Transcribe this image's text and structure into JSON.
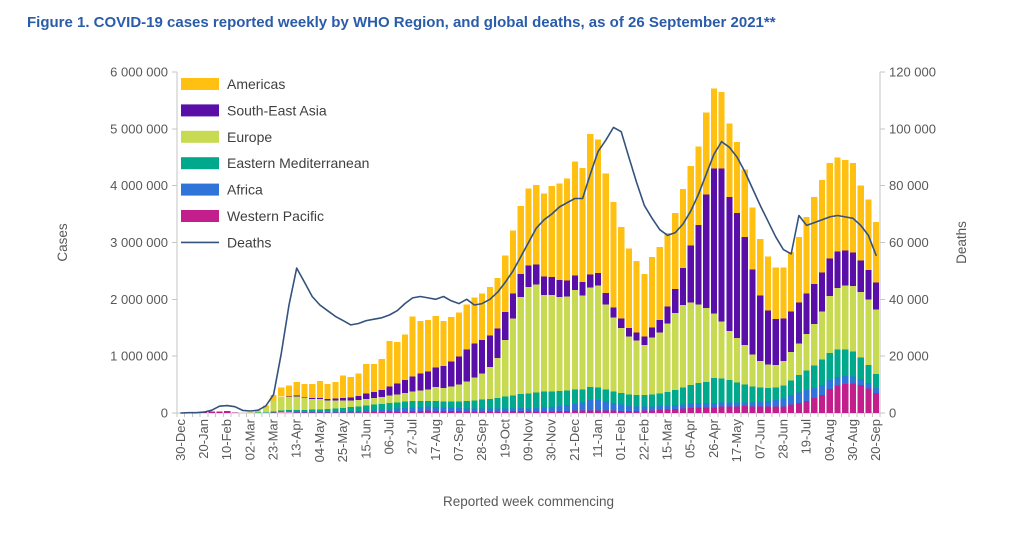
{
  "title": "Figure 1. COVID-19 cases reported weekly by WHO Region, and global deaths, as of 26 September 2021**",
  "chart_data": {
    "type": "bar",
    "subtype": "stacked-bars-with-line",
    "title": "Figure 1. COVID-19 cases reported weekly by WHO Region, and global deaths, as of 26 September 2021**",
    "xlabel": "Reported week commencing",
    "grid": false,
    "legend_position": "top-left-inside",
    "y_left": {
      "label": "Cases",
      "min": 0,
      "max": 6000000,
      "tick_labels": [
        "0",
        "1 000 000",
        "2 000 000",
        "3 000 000",
        "4 000 000",
        "5 000 000",
        "6 000 000"
      ]
    },
    "y_right": {
      "label": "Deaths",
      "min": 0,
      "max": 120000,
      "tick_labels": [
        "0",
        "20 000",
        "40 000",
        "60 000",
        "80 000",
        "100 000",
        "120 000"
      ]
    },
    "x_tick_every": 3,
    "weeks": [
      "30-Dec",
      "06-Jan",
      "13-Jan",
      "20-Jan",
      "27-Jan",
      "03-Feb",
      "10-Feb",
      "17-Feb",
      "24-Feb",
      "02-Mar",
      "09-Mar",
      "16-Mar",
      "23-Mar",
      "30-Mar",
      "06-Apr",
      "13-Apr",
      "20-Apr",
      "27-Apr",
      "04-May",
      "11-May",
      "18-May",
      "25-May",
      "01-Jun",
      "08-Jun",
      "15-Jun",
      "22-Jun",
      "29-Jun",
      "06-Jul",
      "13-Jul",
      "20-Jul",
      "27-Jul",
      "03-Aug",
      "10-Aug",
      "17-Aug",
      "24-Aug",
      "31-Aug",
      "07-Sep",
      "14-Sep",
      "21-Sep",
      "28-Sep",
      "05-Oct",
      "12-Oct",
      "19-Oct",
      "26-Oct",
      "02-Nov",
      "09-Nov",
      "16-Nov",
      "23-Nov",
      "30-Nov",
      "07-Dec",
      "14-Dec",
      "21-Dec",
      "28-Dec",
      "04-Jan",
      "11-Jan",
      "18-Jan",
      "25-Jan",
      "01-Feb",
      "08-Feb",
      "15-Feb",
      "22-Feb",
      "01-Mar",
      "08-Mar",
      "15-Mar",
      "22-Mar",
      "29-Mar",
      "05-Apr",
      "12-Apr",
      "19-Apr",
      "26-Apr",
      "03-May",
      "10-May",
      "17-May",
      "24-May",
      "31-May",
      "07-Jun",
      "14-Jun",
      "21-Jun",
      "28-Jun",
      "05-Jul",
      "12-Jul",
      "19-Jul",
      "26-Jul",
      "02-Aug",
      "09-Aug",
      "16-Aug",
      "23-Aug",
      "30-Aug",
      "06-Sep",
      "13-Sep",
      "20-Sep"
    ],
    "values_unit": "thousands (multiply by 1000)",
    "series": [
      {
        "name": "Western Pacific",
        "color": "#C21F8D",
        "values": [
          0,
          0,
          1,
          15,
          30,
          28,
          32,
          8,
          4,
          3,
          3,
          5,
          8,
          10,
          9,
          8,
          7,
          7,
          7,
          8,
          9,
          10,
          11,
          12,
          14,
          16,
          18,
          22,
          26,
          30,
          34,
          38,
          40,
          38,
          36,
          34,
          32,
          30,
          29,
          28,
          28,
          29,
          30,
          32,
          34,
          25,
          26,
          28,
          30,
          34,
          38,
          40,
          42,
          45,
          45,
          42,
          40,
          38,
          37,
          38,
          40,
          44,
          50,
          58,
          68,
          80,
          92,
          100,
          100,
          100,
          110,
          115,
          118,
          120,
          118,
          115,
          112,
          112,
          118,
          150,
          180,
          215,
          260,
          320,
          420,
          480,
          510,
          520,
          490,
          430,
          350
        ]
      },
      {
        "name": "Africa",
        "color": "#2E74D9",
        "values": [
          0,
          0,
          0,
          0,
          0,
          0,
          0,
          0,
          0,
          0,
          1,
          1,
          2,
          4,
          5,
          6,
          7,
          8,
          10,
          12,
          14,
          17,
          20,
          24,
          28,
          32,
          36,
          42,
          50,
          58,
          65,
          70,
          72,
          70,
          65,
          60,
          55,
          52,
          50,
          48,
          47,
          47,
          48,
          50,
          53,
          57,
          62,
          68,
          75,
          90,
          105,
          120,
          140,
          185,
          180,
          160,
          135,
          110,
          90,
          80,
          75,
          72,
          70,
          68,
          70,
          72,
          75,
          78,
          80,
          80,
          76,
          72,
          70,
          68,
          70,
          80,
          95,
          115,
          140,
          165,
          185,
          190,
          180,
          170,
          160,
          150,
          140,
          125,
          110,
          95,
          88
        ]
      },
      {
        "name": "Eastern Mediterranean",
        "color": "#00A98C",
        "values": [
          0,
          0,
          0,
          0,
          0,
          0,
          0,
          1,
          1,
          3,
          6,
          12,
          20,
          28,
          35,
          40,
          42,
          45,
          48,
          52,
          58,
          65,
          72,
          80,
          90,
          100,
          105,
          110,
          112,
          112,
          110,
          105,
          102,
          100,
          102,
          108,
          118,
          130,
          145,
          160,
          175,
          190,
          210,
          230,
          250,
          265,
          275,
          280,
          275,
          265,
          255,
          250,
          235,
          230,
          220,
          210,
          205,
          200,
          195,
          195,
          200,
          210,
          225,
          245,
          270,
          300,
          330,
          350,
          365,
          440,
          420,
          390,
          350,
          310,
          280,
          250,
          230,
          220,
          225,
          260,
          300,
          345,
          400,
          450,
          480,
          490,
          470,
          440,
          380,
          320,
          250
        ]
      },
      {
        "name": "Europe",
        "color": "#C7DA52",
        "values": [
          0,
          0,
          0,
          0,
          1,
          1,
          1,
          1,
          2,
          12,
          35,
          90,
          190,
          240,
          235,
          240,
          205,
          190,
          180,
          150,
          140,
          130,
          120,
          115,
          115,
          115,
          120,
          130,
          140,
          155,
          170,
          185,
          200,
          250,
          235,
          265,
          300,
          345,
          400,
          460,
          560,
          700,
          1000,
          1350,
          1700,
          1870,
          1900,
          1700,
          1700,
          1650,
          1650,
          1750,
          1650,
          1750,
          1800,
          1500,
          1300,
          1150,
          1020,
          960,
          880,
          1000,
          1070,
          1200,
          1350,
          1450,
          1450,
          1380,
          1300,
          1130,
          1000,
          870,
          780,
          700,
          560,
          470,
          420,
          400,
          430,
          500,
          560,
          640,
          730,
          850,
          1000,
          1080,
          1120,
          1150,
          1150,
          1150,
          1130
        ]
      },
      {
        "name": "South-East Asia",
        "color": "#5A0EA8",
        "values": [
          0,
          0,
          0,
          0,
          0,
          0,
          0,
          0,
          0,
          0,
          0,
          1,
          2,
          4,
          7,
          10,
          13,
          16,
          20,
          26,
          33,
          42,
          52,
          64,
          95,
          110,
          130,
          160,
          195,
          230,
          265,
          295,
          320,
          345,
          390,
          440,
          485,
          560,
          600,
          585,
          555,
          520,
          485,
          445,
          405,
          380,
          350,
          330,
          310,
          300,
          285,
          262,
          240,
          230,
          218,
          200,
          180,
          162,
          150,
          142,
          148,
          180,
          220,
          300,
          420,
          650,
          1000,
          1400,
          2000,
          2550,
          2700,
          2350,
          2200,
          1900,
          1500,
          1150,
          950,
          810,
          750,
          710,
          720,
          710,
          700,
          680,
          660,
          640,
          620,
          590,
          550,
          520,
          480
        ]
      },
      {
        "name": "Americas",
        "color": "#FFC012",
        "values": [
          0,
          0,
          0,
          0,
          0,
          0,
          0,
          0,
          1,
          2,
          5,
          25,
          95,
          160,
          195,
          240,
          235,
          245,
          300,
          265,
          290,
          400,
          355,
          400,
          520,
          485,
          545,
          800,
          730,
          800,
          1050,
          930,
          900,
          900,
          790,
          780,
          775,
          790,
          805,
          820,
          850,
          885,
          1000,
          1100,
          1200,
          1350,
          1400,
          1455,
          1600,
          1700,
          1790,
          2000,
          2000,
          2470,
          2350,
          2100,
          1850,
          1610,
          1400,
          1260,
          1100,
          1240,
          1290,
          1300,
          1340,
          1390,
          1400,
          1380,
          1440,
          1410,
          1340,
          1300,
          1250,
          1190,
          1090,
          1000,
          945,
          900,
          900,
          1050,
          1150,
          1350,
          1530,
          1630,
          1680,
          1660,
          1590,
          1575,
          1320,
          1240,
          1060
        ]
      }
    ],
    "line_series": {
      "name": "Deaths",
      "color": "#33527D",
      "axis": "right",
      "values_unit": "thousands (multiply by 1000)",
      "values": [
        0,
        0.1,
        0.1,
        0.3,
        1,
        2.4,
        2.6,
        2.2,
        0.9,
        0.7,
        1,
        2.5,
        6.5,
        21,
        38,
        51,
        46,
        41,
        38,
        36,
        34,
        32.5,
        31,
        31.5,
        32.5,
        33,
        33.5,
        34.5,
        36,
        38.5,
        40.5,
        41,
        40.5,
        40,
        41,
        39.5,
        38.5,
        40,
        38,
        38.5,
        40,
        42.5,
        46,
        50,
        55,
        60,
        65,
        68,
        70,
        72.5,
        74,
        75.5,
        75.5,
        84,
        92,
        96,
        100.5,
        99,
        90,
        81,
        73,
        68.5,
        64.5,
        62.5,
        63.5,
        66.5,
        71,
        77,
        84,
        91,
        95.5,
        93.5,
        90,
        85,
        79,
        73,
        67.5,
        62,
        57.5,
        56,
        69.5,
        66,
        67,
        68,
        69,
        69.5,
        69,
        68.5,
        66,
        62.5,
        55.5
      ]
    },
    "legend": [
      {
        "label": "Americas",
        "color": "#FFC012",
        "type": "box"
      },
      {
        "label": "South-East Asia",
        "color": "#5A0EA8",
        "type": "box"
      },
      {
        "label": "Europe",
        "color": "#C7DA52",
        "type": "box"
      },
      {
        "label": "Eastern Mediterranean",
        "color": "#00A98C",
        "type": "box"
      },
      {
        "label": "Africa",
        "color": "#2E74D9",
        "type": "box"
      },
      {
        "label": "Western Pacific",
        "color": "#C21F8D",
        "type": "box"
      },
      {
        "label": "Deaths",
        "color": "#33527D",
        "type": "line"
      }
    ],
    "colors": {
      "title_text": "#2A5CAA",
      "axis_text": "#595959",
      "legend_text": "#3F3F3F",
      "axis_line": "#C6C6C6"
    }
  }
}
